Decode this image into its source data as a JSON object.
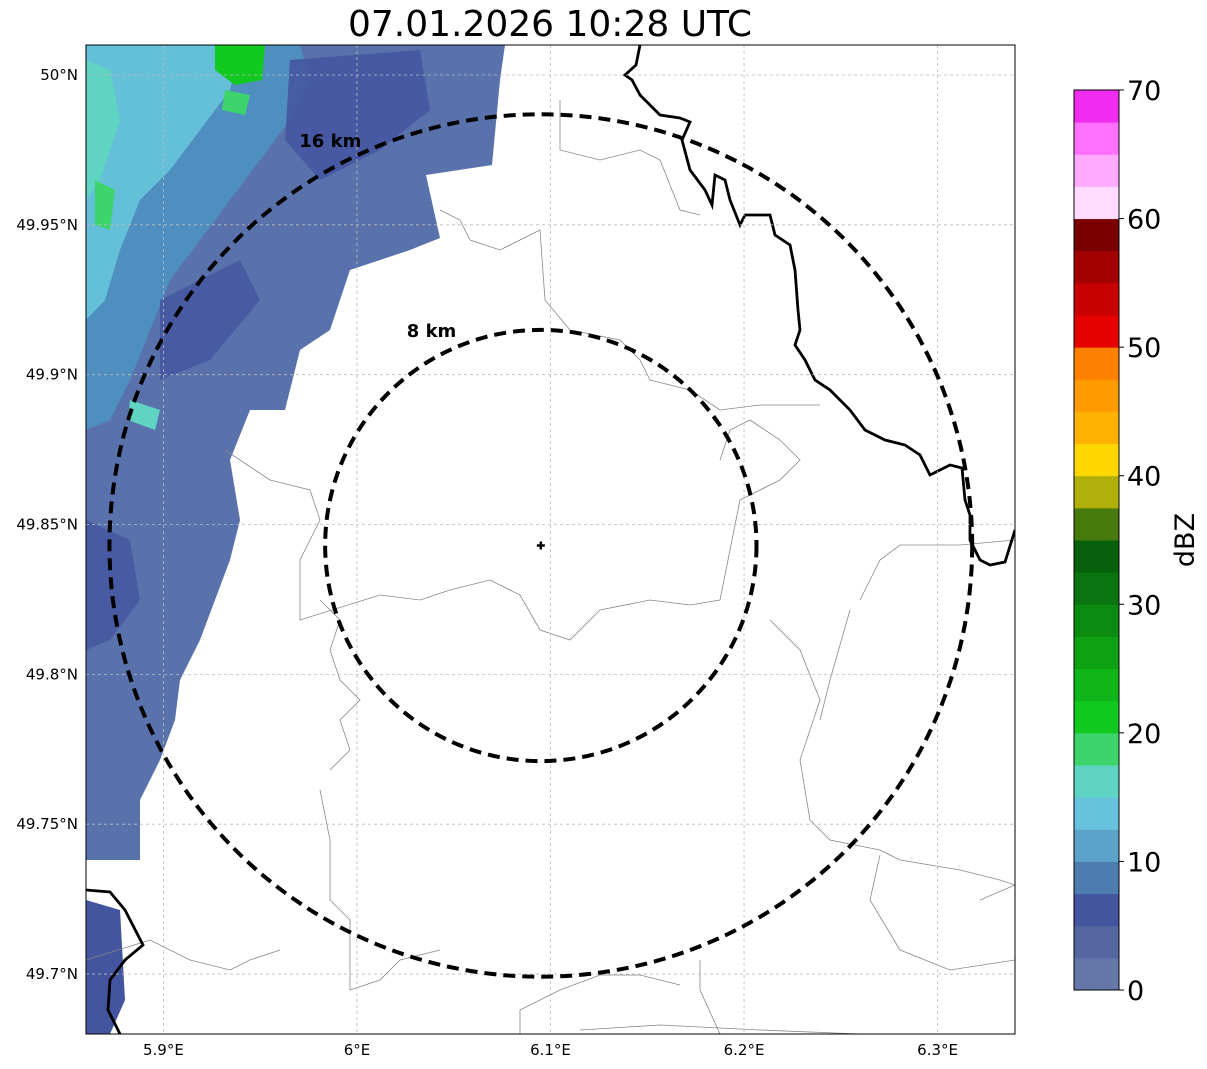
{
  "title": "07.01.2026 10:28 UTC",
  "map": {
    "lat_ticks": [
      {
        "value": 50.0,
        "label": "50°N"
      },
      {
        "value": 49.95,
        "label": "49.95°N"
      },
      {
        "value": 49.9,
        "label": "49.9°N"
      },
      {
        "value": 49.85,
        "label": "49.85°N"
      },
      {
        "value": 49.8,
        "label": "49.8°N"
      },
      {
        "value": 49.75,
        "label": "49.75°N"
      },
      {
        "value": 49.7,
        "label": "49.7°N"
      }
    ],
    "lon_ticks": [
      {
        "value": 5.9,
        "label": "5.9°E"
      },
      {
        "value": 6.0,
        "label": "6°E"
      },
      {
        "value": 6.1,
        "label": "6.1°E"
      },
      {
        "value": 6.2,
        "label": "6.2°E"
      },
      {
        "value": 6.3,
        "label": "6.3°E"
      }
    ],
    "lon_range": [
      5.86,
      6.34
    ],
    "lat_range": [
      49.68,
      50.01
    ],
    "radar_site": {
      "lon": 6.095,
      "lat": 49.843
    },
    "rings": [
      {
        "radius_km": 8,
        "label": "8 km"
      },
      {
        "radius_km": 16,
        "label": "16 km"
      }
    ]
  },
  "colorbar": {
    "label": "dBZ",
    "min": 0,
    "max": 70,
    "ticks": [
      {
        "value": 0,
        "label": "0"
      },
      {
        "value": 10,
        "label": "10"
      },
      {
        "value": 20,
        "label": "20"
      },
      {
        "value": 30,
        "label": "30"
      },
      {
        "value": 40,
        "label": "40"
      },
      {
        "value": 50,
        "label": "50"
      },
      {
        "value": 60,
        "label": "60"
      },
      {
        "value": 70,
        "label": "70"
      }
    ],
    "colors": [
      "#6677aa",
      "#5566a0",
      "#4455a0",
      "#4d7db0",
      "#5ba3c8",
      "#66c2dd",
      "#5fd4c3",
      "#3dd46b",
      "#12c91f",
      "#10b619",
      "#0ea213",
      "#0b8b10",
      "#0a7410",
      "#07600b",
      "#467a0d",
      "#b0b00a",
      "#ffd700",
      "#ffb300",
      "#ff9a00",
      "#ff7f00",
      "#e60000",
      "#c80000",
      "#a30000",
      "#7a0000",
      "#ffdcff",
      "#ffaaff",
      "#ff70ff",
      "#f02cf0"
    ]
  },
  "colors": {
    "border": "#000000",
    "grid": "#bbbbbb",
    "admin": "#888888"
  }
}
